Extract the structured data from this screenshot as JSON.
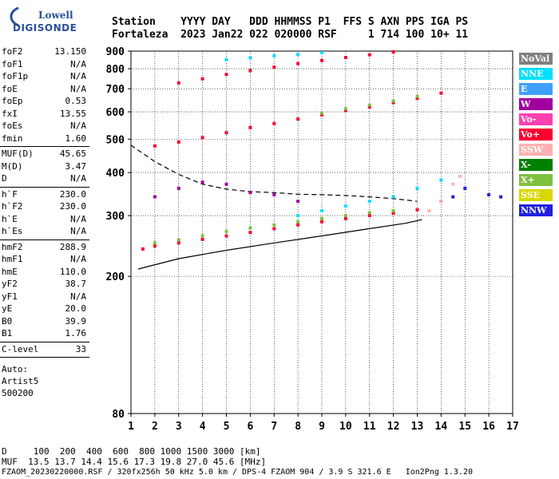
{
  "logo": {
    "line1": "Lowell",
    "line2": "DIGISONDE"
  },
  "header": {
    "line1": "Station    YYYY DAY   DDD HHMMSS P1  FFS S AXN PPS IGA PS",
    "line2": "Fortaleza  2023 Jan22 022 020000 RSF     1 714 100 10+ 11"
  },
  "params": [
    {
      "label": "foF2",
      "value": "13.150"
    },
    {
      "label": "foF1",
      "value": "N/A"
    },
    {
      "label": "foF1p",
      "value": "N/A"
    },
    {
      "label": "foE",
      "value": "N/A"
    },
    {
      "label": "foEp",
      "value": "0.53"
    },
    {
      "label": "fxI",
      "value": "13.55"
    },
    {
      "label": "foEs",
      "value": "N/A"
    },
    {
      "label": "fmin",
      "value": "1.60"
    },
    {
      "label": "MUF(D)",
      "value": "45.65"
    },
    {
      "label": "M(D)",
      "value": "3.47"
    },
    {
      "label": "D",
      "value": "N/A"
    },
    {
      "label": "h`F",
      "value": "230.0"
    },
    {
      "label": "h`F2",
      "value": "230.0"
    },
    {
      "label": "h`E",
      "value": "N/A"
    },
    {
      "label": "h`Es",
      "value": "N/A"
    },
    {
      "label": "hmF2",
      "value": "288.9"
    },
    {
      "label": "hmF1",
      "value": "N/A"
    },
    {
      "label": "hmE",
      "value": "110.0"
    },
    {
      "label": "yF2",
      "value": "38.7"
    },
    {
      "label": "yF1",
      "value": "N/A"
    },
    {
      "label": "yE",
      "value": "20.0"
    },
    {
      "label": "B0",
      "value": "39.9"
    },
    {
      "label": "B1",
      "value": "1.76"
    },
    {
      "label": "C-level",
      "value": "33"
    }
  ],
  "auto": {
    "line1": "Auto:",
    "line2": "Artist5",
    "line3": "500200"
  },
  "legend": [
    {
      "label": "NoVal",
      "color": "#808080"
    },
    {
      "label": "NNE",
      "color": "#00e0ff"
    },
    {
      "label": "E",
      "color": "#40a0ff"
    },
    {
      "label": "W",
      "color": "#a000a0"
    },
    {
      "label": "Vo-",
      "color": "#ff40b0"
    },
    {
      "label": "Vo+",
      "color": "#ff0030"
    },
    {
      "label": "SSW",
      "color": "#ffb0b0"
    },
    {
      "label": "X-",
      "color": "#008000"
    },
    {
      "label": "X+",
      "color": "#80c040"
    },
    {
      "label": "SSE",
      "color": "#d8d800"
    },
    {
      "label": "NNW",
      "color": "#2020e0"
    }
  ],
  "footer": {
    "line1": "D     100  200  400  600  800 1000 1500 3000 [km]",
    "line2": "MUF  13.5 13.7 14.4 15.6 17.3 19.8 27.0 45.6 [MHz]",
    "line3": "FZAOM_20230220000.RSF / 320fx256h 50 kHz 5.0 km / DPS-4 FZAOM 904 / 3.9 S 321.6 E   Ion2Png 1.3.20"
  },
  "chart_data": {
    "type": "scatter",
    "title": "",
    "xlabel": "",
    "ylabel": "",
    "xlim": [
      1,
      17
    ],
    "ylim": [
      80,
      900
    ],
    "yscale": "log",
    "xticks": [
      "1",
      "2",
      "3",
      "4",
      "5",
      "6",
      "7",
      "8",
      "9",
      "10",
      "11",
      "12",
      "13",
      "14",
      "15",
      "16",
      "17"
    ],
    "yticks": [
      "80",
      "200",
      "300",
      "400",
      "500",
      "600",
      "700",
      "800",
      "900"
    ],
    "grid": true,
    "legend_position": "right",
    "series": [
      {
        "name": "Vo+",
        "color": "#ff0030",
        "points": [
          [
            1.5,
            240
          ],
          [
            2,
            245
          ],
          [
            3,
            250
          ],
          [
            4,
            256
          ],
          [
            5,
            262
          ],
          [
            6,
            268
          ],
          [
            7,
            275
          ],
          [
            8,
            282
          ],
          [
            9,
            288
          ],
          [
            10,
            294
          ],
          [
            11,
            300
          ],
          [
            12,
            305
          ],
          [
            13,
            312
          ]
        ]
      },
      {
        "name": "X+",
        "color": "#80c040",
        "points": [
          [
            2,
            250
          ],
          [
            3,
            255
          ],
          [
            4,
            262
          ],
          [
            5,
            270
          ],
          [
            6,
            276
          ],
          [
            7,
            282
          ],
          [
            8,
            288
          ],
          [
            9,
            294
          ],
          [
            10,
            300
          ],
          [
            11,
            306
          ],
          [
            12,
            310
          ]
        ]
      },
      {
        "name": "NNE",
        "color": "#00e0ff",
        "points": [
          [
            8,
            300
          ],
          [
            9,
            310
          ],
          [
            10,
            320
          ],
          [
            11,
            330
          ],
          [
            12,
            340
          ],
          [
            13,
            360
          ],
          [
            14,
            380
          ]
        ]
      },
      {
        "name": "W",
        "color": "#a000a0",
        "points": [
          [
            2,
            340
          ],
          [
            3,
            360
          ],
          [
            4,
            375
          ],
          [
            5,
            370
          ],
          [
            6,
            350
          ],
          [
            7,
            345
          ],
          [
            8,
            330
          ]
        ]
      },
      {
        "name": "NNW",
        "color": "#2020e0",
        "points": [
          [
            14,
            330
          ],
          [
            14.5,
            340
          ],
          [
            15,
            360
          ],
          [
            16,
            345
          ],
          [
            16.5,
            340
          ]
        ]
      },
      {
        "name": "SSW",
        "color": "#ffb0b0",
        "points": [
          [
            13.5,
            310
          ],
          [
            14,
            330
          ],
          [
            14.5,
            370
          ],
          [
            14.8,
            390
          ]
        ]
      },
      {
        "name": "Vo+ (2nd hop)",
        "color": "#ff0030",
        "points": [
          [
            2,
            478
          ],
          [
            3,
            490
          ],
          [
            4,
            505
          ],
          [
            5,
            522
          ],
          [
            6,
            540
          ],
          [
            7,
            555
          ],
          [
            8,
            572
          ],
          [
            9,
            588
          ],
          [
            10,
            605
          ],
          [
            11,
            620
          ],
          [
            12,
            638
          ],
          [
            13,
            656
          ],
          [
            14,
            680
          ]
        ]
      },
      {
        "name": "X+ (2nd hop)",
        "color": "#80c040",
        "points": [
          [
            9,
            595
          ],
          [
            10,
            612
          ],
          [
            11,
            628
          ],
          [
            12,
            645
          ],
          [
            13,
            665
          ]
        ]
      },
      {
        "name": "Vo+ (3rd hop)",
        "color": "#ff0030",
        "points": [
          [
            3,
            728
          ],
          [
            4,
            748
          ],
          [
            5,
            770
          ],
          [
            6,
            790
          ],
          [
            7,
            808
          ],
          [
            8,
            828
          ],
          [
            9,
            845
          ],
          [
            10,
            862
          ],
          [
            11,
            878
          ],
          [
            12,
            895
          ]
        ]
      },
      {
        "name": "NNE (3rd hop)",
        "color": "#00e0ff",
        "points": [
          [
            5,
            850
          ],
          [
            6,
            860
          ],
          [
            7,
            872
          ],
          [
            8,
            880
          ],
          [
            9,
            890
          ]
        ]
      }
    ],
    "profile_solid": [
      [
        1.3,
        210
      ],
      [
        3,
        225
      ],
      [
        5,
        238
      ],
      [
        7,
        250
      ],
      [
        9,
        262
      ],
      [
        11,
        275
      ],
      [
        12.5,
        285
      ],
      [
        13.2,
        292
      ]
    ],
    "profile_dashed": [
      [
        1,
        480
      ],
      [
        2,
        430
      ],
      [
        3,
        395
      ],
      [
        4,
        370
      ],
      [
        5,
        358
      ],
      [
        6,
        352
      ],
      [
        7,
        350
      ],
      [
        8,
        346
      ],
      [
        9,
        345
      ],
      [
        10,
        343
      ],
      [
        11,
        340
      ],
      [
        12,
        336
      ],
      [
        13,
        330
      ]
    ]
  }
}
